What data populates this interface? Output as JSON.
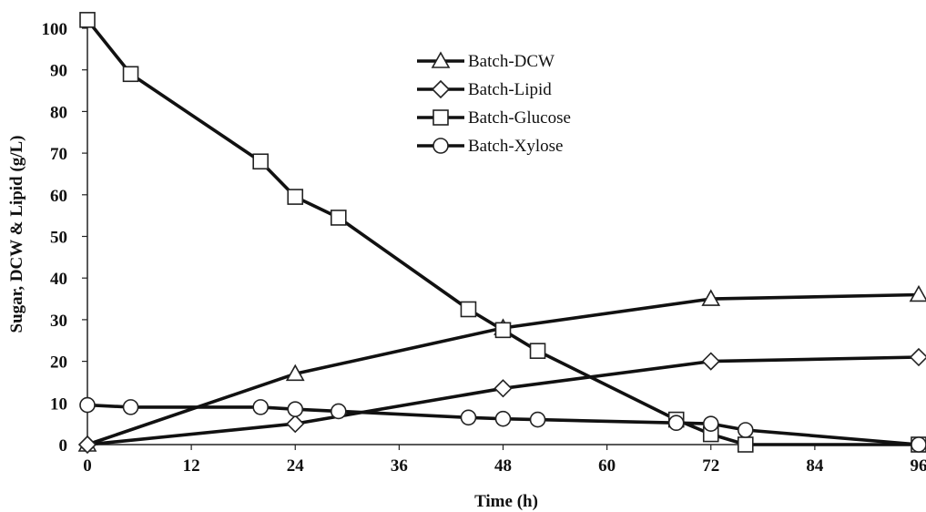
{
  "chart_data": {
    "type": "line",
    "xlabel": "Time (h)",
    "ylabel": "Sugar, DCW & Lipid (g/L)",
    "xlim": [
      0,
      96
    ],
    "ylim": [
      0,
      100
    ],
    "xticks": [
      0,
      12,
      24,
      36,
      48,
      60,
      72,
      84,
      96
    ],
    "yticks": [
      0,
      10,
      20,
      30,
      40,
      50,
      60,
      70,
      80,
      90,
      100
    ],
    "grid": false,
    "legend_position": "top-center",
    "series": [
      {
        "name": "Batch-DCW",
        "marker": "triangle",
        "points": [
          [
            0,
            0
          ],
          [
            24,
            17
          ],
          [
            48,
            28
          ],
          [
            72,
            35
          ],
          [
            96,
            36
          ]
        ]
      },
      {
        "name": "Batch-Lipid",
        "marker": "diamond",
        "points": [
          [
            0,
            0
          ],
          [
            24,
            5
          ],
          [
            48,
            13.5
          ],
          [
            72,
            20
          ],
          [
            96,
            21
          ]
        ]
      },
      {
        "name": "Batch-Glucose",
        "marker": "square",
        "points": [
          [
            0,
            102
          ],
          [
            5,
            89
          ],
          [
            20,
            68
          ],
          [
            24,
            59.5
          ],
          [
            29,
            54.5
          ],
          [
            44,
            32.5
          ],
          [
            48,
            27.5
          ],
          [
            52,
            22.5
          ],
          [
            68,
            6
          ],
          [
            72,
            2.5
          ],
          [
            76,
            0
          ],
          [
            96,
            0
          ]
        ]
      },
      {
        "name": "Batch-Xylose",
        "marker": "circle",
        "points": [
          [
            0,
            9.5
          ],
          [
            5,
            9
          ],
          [
            20,
            9
          ],
          [
            24,
            8.5
          ],
          [
            29,
            8
          ],
          [
            44,
            6.5
          ],
          [
            48,
            6.2
          ],
          [
            52,
            6
          ],
          [
            68,
            5.2
          ],
          [
            72,
            5
          ],
          [
            76,
            3.5
          ],
          [
            96,
            0
          ]
        ]
      }
    ]
  }
}
